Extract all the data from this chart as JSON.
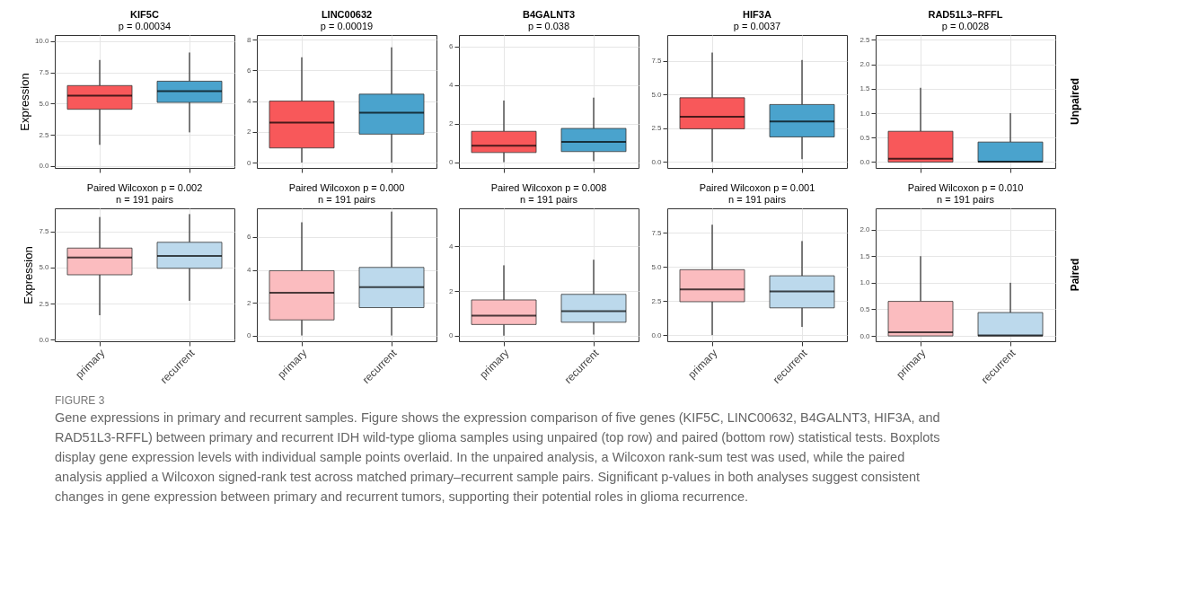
{
  "chart_data": [
    {
      "type": "box",
      "title": "KIF5C",
      "subtitle": "p = 0.00034",
      "ylabel": "Expression",
      "categories": [
        null,
        null
      ],
      "colors": [
        "#f8585a",
        "#4aa3cd"
      ],
      "grid": true,
      "ylim": [
        -0.15,
        10.5
      ],
      "yticks": [
        {
          "value": 0,
          "label": "0.0"
        },
        2.5,
        {
          "value": 5,
          "label": "5.0"
        },
        7.5,
        {
          "value": 10,
          "label": "10.0"
        }
      ],
      "boxes": [
        {
          "low": 1.7,
          "q1": 4.55,
          "median": 5.65,
          "q3": 6.45,
          "high": 8.5
        },
        {
          "low": 2.7,
          "q1": 5.1,
          "median": 6.0,
          "q3": 6.8,
          "high": 9.1
        }
      ]
    },
    {
      "type": "box",
      "title": "LINC00632",
      "subtitle": "p = 0.00019",
      "categories": [
        null,
        null
      ],
      "colors": [
        "#f8585a",
        "#4aa3cd"
      ],
      "grid": true,
      "ylim": [
        -0.35,
        8.3
      ],
      "yticks": [
        0,
        2,
        4,
        6,
        8
      ],
      "boxes": [
        {
          "low": 0,
          "q1": 0.95,
          "median": 2.6,
          "q3": 4.0,
          "high": 6.85
        },
        {
          "low": 0,
          "q1": 1.85,
          "median": 3.25,
          "q3": 4.45,
          "high": 7.5
        }
      ]
    },
    {
      "type": "box",
      "title": "B4GALNT3",
      "subtitle": "p = 0.038",
      "categories": [
        null,
        null
      ],
      "colors": [
        "#f8585a",
        "#4aa3cd"
      ],
      "grid": true,
      "ylim": [
        -0.3,
        6.6
      ],
      "yticks": [
        0,
        2,
        4,
        6
      ],
      "boxes": [
        {
          "low": 0,
          "q1": 0.5,
          "median": 0.85,
          "q3": 1.6,
          "high": 3.2
        },
        {
          "low": 0.05,
          "q1": 0.55,
          "median": 1.05,
          "q3": 1.75,
          "high": 3.35
        }
      ]
    },
    {
      "type": "box",
      "title": "HIF3A",
      "subtitle": "p = 0.0037",
      "categories": [
        null,
        null
      ],
      "colors": [
        "#f8585a",
        "#4aa3cd"
      ],
      "grid": true,
      "ylim": [
        -0.45,
        9.4
      ],
      "yticks": [
        {
          "value": 0,
          "label": "0.0"
        },
        2.5,
        {
          "value": 5,
          "label": "5.0"
        },
        7.5
      ],
      "boxes": [
        {
          "low": 0,
          "q1": 2.45,
          "median": 3.35,
          "q3": 4.75,
          "high": 8.1
        },
        {
          "low": 0.2,
          "q1": 1.85,
          "median": 3.0,
          "q3": 4.25,
          "high": 7.55
        }
      ]
    },
    {
      "type": "box",
      "title": "RAD51L3–RFFL",
      "subtitle": "p = 0.0028",
      "categories": [
        null,
        null
      ],
      "colors": [
        "#f8585a",
        "#4aa3cd"
      ],
      "grid": true,
      "ylim": [
        -0.12,
        2.6
      ],
      "yticks": [
        {
          "value": 0,
          "label": "0.0"
        },
        0.5,
        {
          "value": 1,
          "label": "1.0"
        },
        1.5,
        {
          "value": 2,
          "label": "2.0"
        },
        2.5
      ],
      "annotations": [
        "Unpaired"
      ],
      "boxes": [
        {
          "low": 0,
          "q1": 0,
          "median": 0.07,
          "q3": 0.63,
          "high": 1.52
        },
        {
          "low": 0,
          "q1": 0,
          "median": 0.01,
          "q3": 0.41,
          "high": 1.0
        }
      ]
    },
    {
      "type": "box",
      "title": "Paired Wilcoxon p = 0.002",
      "subtitle": "n = 191 pairs",
      "ylabel": "Expression",
      "categories": [
        "primary",
        "recurrent"
      ],
      "colors": [
        "#fbbcbf",
        "#bcd9ec"
      ],
      "grid": true,
      "ylim": [
        -0.1,
        9.1
      ],
      "yticks": [
        {
          "value": 0,
          "label": "0.0"
        },
        2.5,
        {
          "value": 5,
          "label": "5.0"
        },
        7.5
      ],
      "boxes": [
        {
          "low": 1.7,
          "q1": 4.5,
          "median": 5.7,
          "q3": 6.35,
          "high": 8.5
        },
        {
          "low": 2.7,
          "q1": 4.95,
          "median": 5.8,
          "q3": 6.75,
          "high": 8.7
        }
      ]
    },
    {
      "type": "box",
      "title": "Paired Wilcoxon p = 0.000",
      "subtitle": "n = 191 pairs",
      "categories": [
        "primary",
        "recurrent"
      ],
      "colors": [
        "#fbbcbf",
        "#bcd9ec"
      ],
      "grid": true,
      "ylim": [
        -0.35,
        7.75
      ],
      "yticks": [
        0,
        2,
        4,
        6
      ],
      "boxes": [
        {
          "low": 0,
          "q1": 0.95,
          "median": 2.6,
          "q3": 3.95,
          "high": 6.9
        },
        {
          "low": 0,
          "q1": 1.7,
          "median": 2.95,
          "q3": 4.15,
          "high": 7.55
        }
      ]
    },
    {
      "type": "box",
      "title": "Paired Wilcoxon p = 0.008",
      "subtitle": "n = 191 pairs",
      "categories": [
        "primary",
        "recurrent"
      ],
      "colors": [
        "#fbbcbf",
        "#bcd9ec"
      ],
      "grid": true,
      "ylim": [
        -0.25,
        5.7
      ],
      "yticks": [
        0,
        2,
        4
      ],
      "boxes": [
        {
          "low": 0,
          "q1": 0.5,
          "median": 0.9,
          "q3": 1.6,
          "high": 3.15
        },
        {
          "low": 0.05,
          "q1": 0.6,
          "median": 1.1,
          "q3": 1.85,
          "high": 3.4
        }
      ]
    },
    {
      "type": "box",
      "title": "Paired Wilcoxon p = 0.001",
      "subtitle": "n = 191 pairs",
      "categories": [
        "primary",
        "recurrent"
      ],
      "colors": [
        "#fbbcbf",
        "#bcd9ec"
      ],
      "grid": true,
      "ylim": [
        -0.45,
        9.3
      ],
      "yticks": [
        {
          "value": 0,
          "label": "0.0"
        },
        2.5,
        {
          "value": 5,
          "label": "5.0"
        },
        7.5
      ],
      "boxes": [
        {
          "low": 0,
          "q1": 2.45,
          "median": 3.35,
          "q3": 4.8,
          "high": 8.1
        },
        {
          "low": 0.6,
          "q1": 2.0,
          "median": 3.2,
          "q3": 4.35,
          "high": 6.9
        }
      ]
    },
    {
      "type": "box",
      "title": "Paired Wilcoxon p = 0.010",
      "subtitle": "n = 191 pairs",
      "categories": [
        "primary",
        "recurrent"
      ],
      "colors": [
        "#fbbcbf",
        "#bcd9ec"
      ],
      "grid": true,
      "ylim": [
        -0.1,
        2.4
      ],
      "yticks": [
        {
          "value": 0,
          "label": "0.0"
        },
        0.5,
        {
          "value": 1,
          "label": "1.0"
        },
        1.5,
        {
          "value": 2,
          "label": "2.0"
        }
      ],
      "annotations": [
        "Paired",
        "FIGURE 3",
        "Gene expressions in primary and recurrent samples. Figure shows the expression comparison of five genes (KIF5C, LINC00632, B4GALNT3, HIF3A, and RAD51L3-RFFL) between primary and recurrent IDH wild-type glioma samples using unpaired (top row) and paired (bottom row) statistical tests. Boxplots display gene expression levels with individual sample points overlaid. In the unpaired analysis, a Wilcoxon rank-sum test was used, while the paired analysis applied a Wilcoxon signed-rank test across matched primary–recurrent sample pairs. Significant p-values in both analyses suggest consistent changes in gene expression between primary and recurrent tumors, supporting their potential roles in glioma recurrence."
      ],
      "boxes": [
        {
          "low": 0,
          "q1": 0,
          "median": 0.07,
          "q3": 0.65,
          "high": 1.5
        },
        {
          "low": 0,
          "q1": 0,
          "median": 0.01,
          "q3": 0.44,
          "high": 1.0
        }
      ]
    }
  ]
}
